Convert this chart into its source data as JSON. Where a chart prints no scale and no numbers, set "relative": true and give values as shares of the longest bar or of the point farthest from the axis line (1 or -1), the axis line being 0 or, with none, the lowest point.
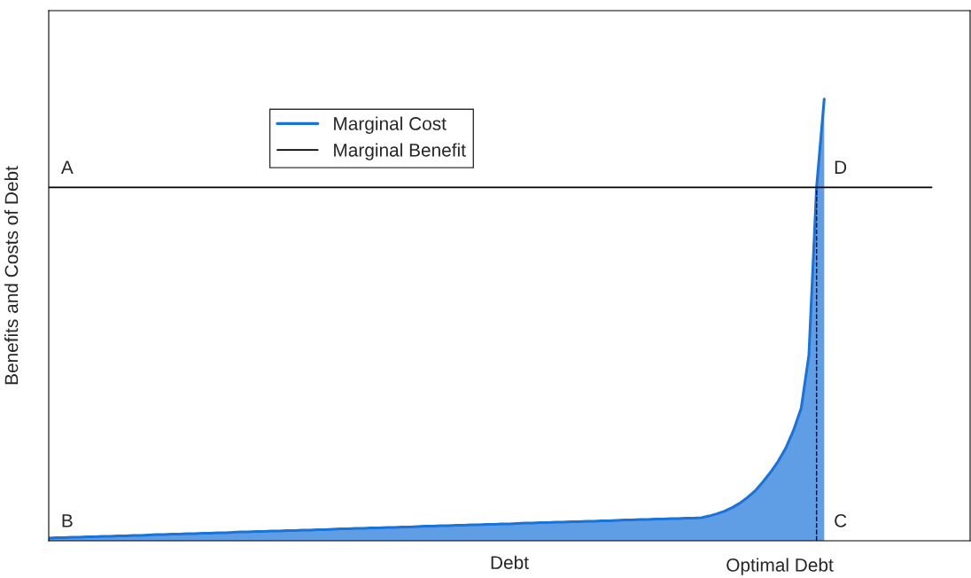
{
  "chart_data": {
    "type": "line",
    "relative": true,
    "xlabel": "Debt",
    "ylabel": "Benefits and Costs of Debt",
    "legend": "top left",
    "categories": [
      null,
      null,
      null,
      null,
      null,
      null,
      null,
      null,
      null,
      null,
      null,
      null,
      null,
      null,
      null,
      null,
      null,
      null,
      null,
      null,
      null,
      null,
      null,
      null,
      null,
      null,
      null,
      null,
      null,
      null,
      null,
      null,
      null,
      null,
      null,
      null,
      null,
      null,
      null,
      null,
      null,
      null,
      null,
      null,
      null,
      null,
      null,
      null,
      null,
      null,
      null,
      null,
      null,
      null,
      null,
      null,
      null,
      null,
      null,
      null,
      null,
      null,
      null,
      null,
      null,
      null,
      null,
      null,
      null,
      null,
      null,
      null,
      null,
      null,
      null,
      null,
      null,
      null,
      null,
      null,
      null,
      null,
      null,
      null,
      null,
      null,
      null,
      null,
      null,
      null,
      null,
      null,
      null,
      null,
      null,
      null,
      null,
      null,
      null,
      null,
      null,
      null,
      null,
      null,
      null,
      null,
      null,
      null,
      null,
      null,
      null,
      null,
      null,
      null,
      null,
      null,
      null,
      null,
      null,
      null,
      null
    ],
    "series": [
      {
        "name": "Marginal Cost",
        "type": "area",
        "color": "#1a73d9",
        "values": [
          0.006,
          0.007,
          0.007,
          0.008,
          0.008,
          0.009,
          0.009,
          0.01,
          0.01,
          0.011,
          0.011,
          0.012,
          0.012,
          0.013,
          0.014,
          0.014,
          0.015,
          0.015,
          0.016,
          0.016,
          0.017,
          0.017,
          0.018,
          0.018,
          0.019,
          0.02,
          0.02,
          0.021,
          0.021,
          0.022,
          0.022,
          0.023,
          0.023,
          0.024,
          0.024,
          0.025,
          0.025,
          0.026,
          0.027,
          0.027,
          0.028,
          0.028,
          0.029,
          0.029,
          0.03,
          0.03,
          0.031,
          0.031,
          0.032,
          0.033,
          0.033,
          0.034,
          0.034,
          0.035,
          0.035,
          0.036,
          0.036,
          0.037,
          0.037,
          0.038,
          0.038,
          0.039,
          0.04,
          0.04,
          0.041,
          0.041,
          0.042,
          0.042,
          0.043,
          0.043,
          0.044,
          0.044,
          0.045,
          0.045,
          0.046,
          0.047,
          0.047,
          0.048,
          0.048,
          0.049,
          0.049,
          0.05,
          0.05,
          0.051,
          0.051,
          0.052,
          0.056,
          0.061,
          0.067,
          0.075,
          0.085,
          0.098,
          0.113,
          0.133,
          0.155,
          0.18,
          0.21,
          0.25,
          0.3,
          0.42,
          0.8,
          1,
          null,
          null,
          null,
          null,
          null,
          null,
          null,
          null,
          null,
          null,
          null,
          null,
          null,
          null,
          null,
          null,
          null,
          null,
          null
        ]
      },
      {
        "name": "Marginal Benefit",
        "color": "#000000",
        "values": [
          0.8,
          0.8,
          0.8,
          0.8,
          0.8,
          0.8,
          0.8,
          0.8,
          0.8,
          0.8,
          0.8,
          0.8,
          0.8,
          0.8,
          0.8,
          0.8,
          0.8,
          0.8,
          0.8,
          0.8,
          0.8,
          0.8,
          0.8,
          0.8,
          0.8,
          0.8,
          0.8,
          0.8,
          0.8,
          0.8,
          0.8,
          0.8,
          0.8,
          0.8,
          0.8,
          0.8,
          0.8,
          0.8,
          0.8,
          0.8,
          0.8,
          0.8,
          0.8,
          0.8,
          0.8,
          0.8,
          0.8,
          0.8,
          0.8,
          0.8,
          0.8,
          0.8,
          0.8,
          0.8,
          0.8,
          0.8,
          0.8,
          0.8,
          0.8,
          0.8,
          0.8,
          0.8,
          0.8,
          0.8,
          0.8,
          0.8,
          0.8,
          0.8,
          0.8,
          0.8,
          0.8,
          0.8,
          0.8,
          0.8,
          0.8,
          0.8,
          0.8,
          0.8,
          0.8,
          0.8,
          0.8,
          0.8,
          0.8,
          0.8,
          0.8,
          0.8,
          0.8,
          0.8,
          0.8,
          0.8,
          0.8,
          0.8,
          0.8,
          0.8,
          0.8,
          0.8,
          0.8,
          0.8,
          0.8,
          0.8,
          0.8,
          0.8,
          0.8,
          0.8,
          0.8,
          0.8,
          0.8,
          0.8,
          0.8,
          0.8,
          0.8,
          0.8,
          0.8,
          0.8,
          0.8,
          0.8,
          null,
          null,
          null,
          null,
          null
        ]
      }
    ],
    "annotations": [
      "A",
      "B",
      "C",
      "D",
      "Optimal Debt"
    ]
  }
}
